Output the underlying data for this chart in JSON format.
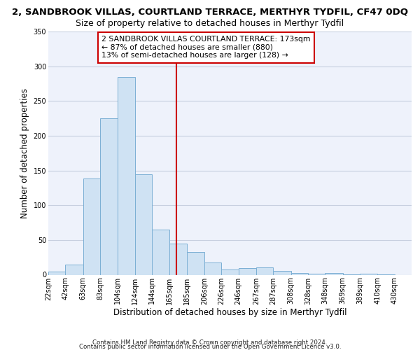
{
  "title": "2, SANDBROOK VILLAS, COURTLAND TERRACE, MERTHYR TYDFIL, CF47 0DQ",
  "subtitle": "Size of property relative to detached houses in Merthyr Tydfil",
  "xlabel": "Distribution of detached houses by size in Merthyr Tydfil",
  "ylabel": "Number of detached properties",
  "footer_line1": "Contains HM Land Registry data © Crown copyright and database right 2024.",
  "footer_line2": "Contains public sector information licensed under the Open Government Licence v3.0.",
  "bar_left_edges": [
    22,
    42,
    63,
    83,
    104,
    124,
    144,
    165,
    185,
    206,
    226,
    246,
    267,
    287,
    308,
    328,
    348,
    369,
    389,
    410
  ],
  "bar_widths": [
    20,
    21,
    20,
    21,
    20,
    20,
    21,
    20,
    21,
    20,
    20,
    21,
    20,
    21,
    20,
    20,
    21,
    20,
    21,
    20
  ],
  "bar_heights": [
    5,
    15,
    138,
    225,
    285,
    145,
    65,
    45,
    33,
    18,
    8,
    10,
    11,
    6,
    3,
    2,
    3,
    1,
    2,
    1
  ],
  "tick_labels": [
    "22sqm",
    "42sqm",
    "63sqm",
    "83sqm",
    "104sqm",
    "124sqm",
    "144sqm",
    "165sqm",
    "185sqm",
    "206sqm",
    "226sqm",
    "246sqm",
    "267sqm",
    "287sqm",
    "308sqm",
    "328sqm",
    "348sqm",
    "369sqm",
    "389sqm",
    "410sqm",
    "430sqm"
  ],
  "bar_facecolor": "#cfe2f3",
  "bar_edgecolor": "#7bafd4",
  "grid_color": "#c8d0e0",
  "bg_color": "#eef2fb",
  "vline_x": 173,
  "vline_color": "#cc0000",
  "annotation_text": "2 SANDBROOK VILLAS COURTLAND TERRACE: 173sqm\n← 87% of detached houses are smaller (880)\n13% of semi-detached houses are larger (128) →",
  "annotation_box_color": "#cc0000",
  "ylim": [
    0,
    350
  ],
  "yticks": [
    0,
    50,
    100,
    150,
    200,
    250,
    300,
    350
  ],
  "title_fontsize": 9.5,
  "subtitle_fontsize": 9,
  "axis_label_fontsize": 8.5,
  "tick_fontsize": 7,
  "annotation_fontsize": 7.8,
  "footer_fontsize": 6.2
}
